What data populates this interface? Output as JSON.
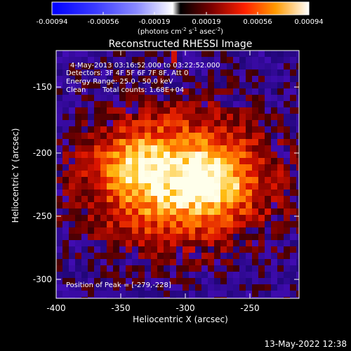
{
  "colorbar": {
    "tick_labels": [
      "-0.00094",
      "-0.00056",
      "-0.00019",
      "0.00019",
      "0.00056",
      "0.00094"
    ],
    "units_prefix": "(photons cm",
    "units_exp1": "-2",
    "units_mid": " s",
    "units_exp2": "-1",
    "units_mid2": " asec",
    "units_exp3": "-2",
    "units_suffix": ")",
    "range": [
      -0.00094,
      0.00094
    ]
  },
  "plot": {
    "title": "Reconstructed RHESSI Image",
    "time_range": "4-May-2013 03:16:52.000 to 03:22:52.000",
    "detectors": "Detectors: 3F 4F 5F 6F 7F 8F, Att 0",
    "energy": "Energy Range: 25.0 - 50.0 keV",
    "method": "Clean",
    "counts": "Total counts: 1.68E+04",
    "peak": "Position of Peak = [-279,-228]",
    "x_label": "Heliocentric X (arcsec)",
    "y_label": "Heliocentric Y (arcsec)",
    "x_ticks": [
      "-400",
      "-350",
      "-300",
      "-250"
    ],
    "y_ticks": [
      "-150",
      "-200",
      "-250",
      "-300"
    ],
    "x_range": [
      -400,
      -212
    ],
    "y_range": [
      -314,
      -126
    ]
  },
  "footer": {
    "timestamp": "13-May-2022 12:38"
  },
  "image_data": {
    "peak_position": [
      -279,
      -228
    ]
  }
}
